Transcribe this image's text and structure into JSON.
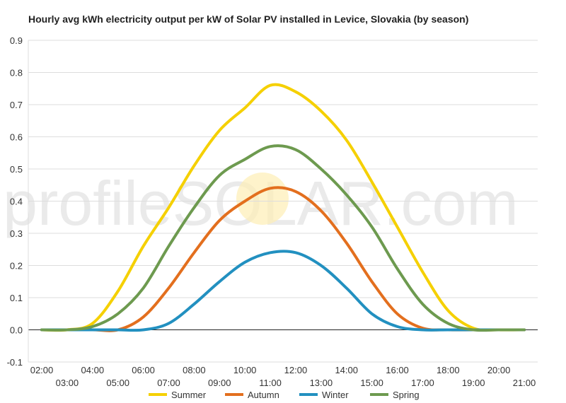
{
  "chart_data": {
    "type": "line",
    "title": "Hourly avg kWh electricity output per kW of Solar PV installed in Levice, Slovakia (by season)",
    "xlabel": "",
    "ylabel": "",
    "x": [
      "02:00",
      "03:00",
      "04:00",
      "05:00",
      "06:00",
      "07:00",
      "08:00",
      "09:00",
      "10:00",
      "11:00",
      "12:00",
      "13:00",
      "14:00",
      "15:00",
      "16:00",
      "17:00",
      "18:00",
      "19:00",
      "20:00",
      "21:00"
    ],
    "x_ticks_upper": [
      "02:00",
      "04:00",
      "06:00",
      "08:00",
      "10:00",
      "12:00",
      "14:00",
      "16:00",
      "18:00",
      "20:00"
    ],
    "x_ticks_lower": [
      "03:00",
      "05:00",
      "07:00",
      "09:00",
      "11:00",
      "13:00",
      "15:00",
      "17:00",
      "19:00",
      "21:00"
    ],
    "y_ticks": [
      "0.9",
      "0.8",
      "0.7",
      "0.6",
      "0.5",
      "0.4",
      "0.3",
      "0.2",
      "0.1",
      "0.0",
      "-0.1"
    ],
    "ylim": [
      -0.1,
      0.9
    ],
    "grid": true,
    "legend_position": "bottom",
    "watermark": "profileSOLAR.com",
    "series": [
      {
        "name": "Summer",
        "color": "#f5d000",
        "values": [
          0.0,
          0.0,
          0.02,
          0.12,
          0.26,
          0.38,
          0.51,
          0.62,
          0.69,
          0.76,
          0.74,
          0.68,
          0.59,
          0.46,
          0.32,
          0.18,
          0.06,
          0.005,
          0.0,
          0.0
        ]
      },
      {
        "name": "Autumn",
        "color": "#e36f1e",
        "values": [
          0.0,
          0.0,
          0.0,
          0.0,
          0.04,
          0.13,
          0.24,
          0.34,
          0.4,
          0.44,
          0.43,
          0.37,
          0.27,
          0.15,
          0.05,
          0.005,
          0.0,
          0.0,
          0.0,
          0.0
        ]
      },
      {
        "name": "Winter",
        "color": "#2290c0",
        "values": [
          0.0,
          0.0,
          0.0,
          0.0,
          0.0,
          0.02,
          0.08,
          0.15,
          0.21,
          0.24,
          0.24,
          0.2,
          0.13,
          0.05,
          0.01,
          0.0,
          0.0,
          0.0,
          0.0,
          0.0
        ]
      },
      {
        "name": "Spring",
        "color": "#6d9a4f",
        "values": [
          0.0,
          0.0,
          0.01,
          0.05,
          0.13,
          0.26,
          0.38,
          0.48,
          0.53,
          0.57,
          0.56,
          0.5,
          0.42,
          0.32,
          0.19,
          0.08,
          0.02,
          0.0,
          0.0,
          0.0
        ]
      }
    ]
  }
}
